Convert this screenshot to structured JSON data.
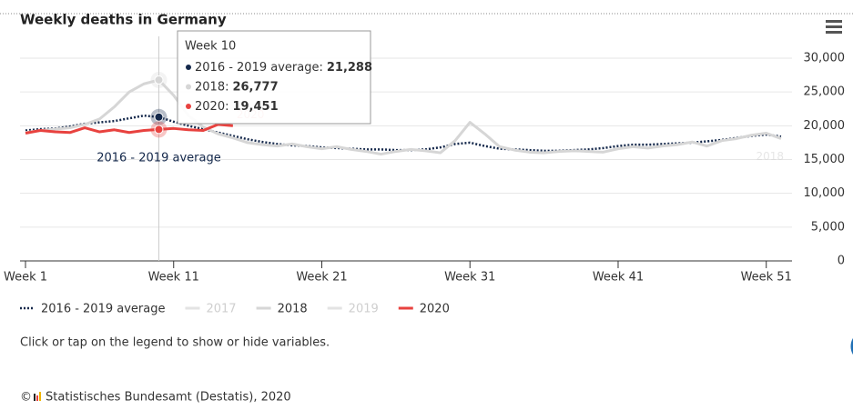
{
  "chart_data": {
    "type": "line",
    "title": "Weekly deaths in Germany",
    "x": [
      1,
      2,
      3,
      4,
      5,
      6,
      7,
      8,
      9,
      10,
      11,
      12,
      13,
      14,
      15,
      16,
      17,
      18,
      19,
      20,
      21,
      22,
      23,
      24,
      25,
      26,
      27,
      28,
      29,
      30,
      31,
      32,
      33,
      34,
      35,
      36,
      37,
      38,
      39,
      40,
      41,
      42,
      43,
      44,
      45,
      46,
      47,
      48,
      49,
      50,
      51,
      52
    ],
    "xlim": [
      1,
      52
    ],
    "xticks": [
      {
        "value": 1,
        "label": "Week 1"
      },
      {
        "value": 11,
        "label": "Week 11"
      },
      {
        "value": 21,
        "label": "Week 21"
      },
      {
        "value": 31,
        "label": "Week 31"
      },
      {
        "value": 41,
        "label": "Week 41"
      },
      {
        "value": 51,
        "label": "Week 51"
      }
    ],
    "ylim": [
      0,
      30000
    ],
    "yticks": [
      0,
      {
        "value": 5000,
        "label": "5,000"
      },
      {
        "value": 10000,
        "label": "10,000"
      },
      {
        "value": 15000,
        "label": "15,000"
      },
      {
        "value": 20000,
        "label": "20,000"
      },
      {
        "value": 25000,
        "label": "25,000"
      },
      {
        "value": 30000,
        "label": "30,000"
      }
    ],
    "grid": true,
    "legend": "bottom-left",
    "series": [
      {
        "name": "2016 - 2019 average",
        "color": "#14284b",
        "dash": "dotted",
        "visible": true,
        "values": [
          19300,
          19500,
          19600,
          19900,
          20300,
          20500,
          20700,
          21100,
          21500,
          21288,
          20600,
          20000,
          19500,
          19000,
          18500,
          18000,
          17600,
          17300,
          17100,
          17000,
          16800,
          16700,
          16600,
          16500,
          16500,
          16400,
          16400,
          16500,
          16800,
          17300,
          17500,
          17000,
          16600,
          16500,
          16400,
          16300,
          16300,
          16400,
          16500,
          16700,
          17000,
          17200,
          17200,
          17300,
          17400,
          17500,
          17700,
          17900,
          18200,
          18500,
          18700,
          18400
        ]
      },
      {
        "name": "2017",
        "color": "#d9d9d9",
        "visible": false
      },
      {
        "name": "2018",
        "color": "#d6d6d6",
        "visible": true,
        "values": [
          19000,
          19300,
          19500,
          19700,
          20200,
          21000,
          22800,
          25000,
          26200,
          26777,
          24500,
          21500,
          19800,
          18800,
          18200,
          17500,
          17200,
          17000,
          17300,
          16900,
          16600,
          16900,
          16500,
          16200,
          15800,
          16200,
          16500,
          16300,
          16000,
          17800,
          20500,
          18800,
          16900,
          16400,
          16100,
          16000,
          16200,
          16300,
          16200,
          16100,
          16600,
          16900,
          16700,
          17000,
          17200,
          17600,
          17000,
          17800,
          18100,
          18600,
          18900,
          18100
        ]
      },
      {
        "name": "2019",
        "color": "#d9d9d9",
        "visible": false
      },
      {
        "name": "2020",
        "color": "#e8423f",
        "visible": true,
        "values": [
          18900,
          19300,
          19100,
          19000,
          19700,
          19100,
          19400,
          19000,
          19300,
          19451,
          19600,
          19400,
          19300,
          20200,
          20000,
          null,
          null,
          null,
          null,
          null,
          null,
          null,
          null,
          null,
          null,
          null,
          null,
          null,
          null,
          null,
          null,
          null,
          null,
          null,
          null,
          null,
          null,
          null,
          null,
          null,
          null,
          null,
          null,
          null,
          null,
          null,
          null,
          null,
          null,
          null,
          null,
          null
        ]
      }
    ],
    "tooltip": {
      "week": 10,
      "title": "Week 10",
      "items": [
        {
          "label": "2016 - 2019 average:",
          "value": "21,288"
        },
        {
          "label": "2018:",
          "value": "26,777"
        },
        {
          "label": "2020:",
          "value": "19,451"
        }
      ]
    },
    "note": "Click or tap on the legend to show or hide variables.",
    "copyright": "©",
    "credit": "Statistisches Bundesamt (Destatis), 2020"
  }
}
